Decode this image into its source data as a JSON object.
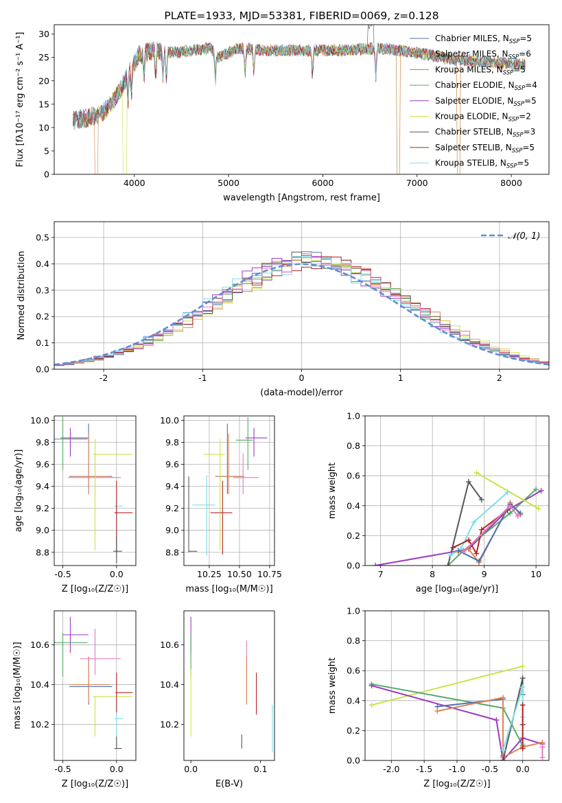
{
  "colors": {
    "chabrier_miles": "#4c72b0",
    "salpeter_miles": "#dd8452",
    "kroupa_miles": "#c17a2a",
    "chabrier_elodie": "#55a868",
    "salpeter_elodie": "#9a3bc2",
    "kroupa_elodie": "#cde14a",
    "chabrier_stelib": "#555555",
    "salpeter_stelib": "#b22222",
    "kroupa_stelib": "#7ddde8",
    "pink": "#e377c2",
    "gaussian": "#5b8fd6"
  },
  "chart_data": [
    {
      "id": "spectrum",
      "type": "line",
      "title": "PLATE=1933, MJD=53381, FIBERID=0069, z=0.128",
      "xlabel": "wavelength [Angstrom, rest frame]",
      "ylabel": "Flux [fλ10⁻¹⁷ erg cm⁻² s⁻¹ A⁻¹]",
      "xlim": [
        3150,
        8400
      ],
      "ylim": [
        0,
        32
      ],
      "xticks": [
        4000,
        5000,
        6000,
        7000,
        8000
      ],
      "yticks": [
        0,
        5,
        10,
        15,
        20,
        25,
        30
      ],
      "grid": false,
      "legend_position": "top-right",
      "continuum": {
        "x": [
          3350,
          3500,
          3650,
          3750,
          3850,
          3950,
          4050,
          4200,
          4400,
          4600,
          4800,
          4900,
          5100,
          5400,
          5800,
          6200,
          6600,
          7000,
          7400,
          7800,
          8150
        ],
        "y": [
          11.5,
          12,
          13,
          15,
          18,
          22,
          25.5,
          26.5,
          26,
          26.5,
          27,
          25,
          27,
          26.5,
          26.5,
          26.5,
          27,
          26,
          24.5,
          24,
          23.5
        ]
      },
      "series": [
        {
          "name": "Chabrier MILES, N_SSP=5",
          "color_key": "chabrier_miles"
        },
        {
          "name": "Salpeter MILES, N_SSP=6",
          "color_key": "salpeter_miles"
        },
        {
          "name": "Kroupa MILES, N_SSP=5",
          "color_key": "kroupa_miles"
        },
        {
          "name": "Chabrier ELODIE, N_SSP=4",
          "color_key": "chabrier_elodie"
        },
        {
          "name": "Salpeter ELODIE, N_SSP=5",
          "color_key": "salpeter_elodie"
        },
        {
          "name": "Kroupa ELODIE, N_SSP=2",
          "color_key": "kroupa_elodie"
        },
        {
          "name": "Chabrier STELIB, N_SSP=3",
          "color_key": "chabrier_stelib"
        },
        {
          "name": "Salpeter STELIB, N_SSP=5",
          "color_key": "salpeter_stelib"
        },
        {
          "name": "Kroupa STELIB, N_SSP=5",
          "color_key": "kroupa_stelib"
        }
      ],
      "legend": [
        {
          "pre": "Chabrier MILES, N",
          "sub": "SSP",
          "post": "=5",
          "color_key": "chabrier_miles"
        },
        {
          "pre": "Salpeter MILES, N",
          "sub": "SSP",
          "post": "=6",
          "color_key": "salpeter_miles"
        },
        {
          "pre": "Kroupa MILES, N",
          "sub": "SSP",
          "post": "=5",
          "color_key": "kroupa_miles"
        },
        {
          "pre": "Chabrier ELODIE, N",
          "sub": "SSP",
          "post": "=4",
          "color_key": "chabrier_elodie"
        },
        {
          "pre": "Salpeter ELODIE, N",
          "sub": "SSP",
          "post": "=5",
          "color_key": "salpeter_elodie"
        },
        {
          "pre": "Kroupa ELODIE, N",
          "sub": "SSP",
          "post": "=2",
          "color_key": "kroupa_elodie"
        },
        {
          "pre": "Chabrier STELIB, N",
          "sub": "SSP",
          "post": "=3",
          "color_key": "chabrier_stelib"
        },
        {
          "pre": "Salpeter STELIB, N",
          "sub": "SSP",
          "post": "=5",
          "color_key": "salpeter_stelib"
        },
        {
          "pre": "Kroupa STELIB, N",
          "sub": "SSP",
          "post": "=5",
          "color_key": "kroupa_stelib"
        }
      ]
    },
    {
      "id": "residual_hist",
      "type": "bar",
      "xlabel": "(data-model)/error",
      "ylabel": "Normed distribution",
      "xlim": [
        -2.5,
        2.5
      ],
      "ylim": [
        0,
        0.56
      ],
      "xticks": [
        -2,
        -1,
        0,
        1,
        2
      ],
      "yticks": [
        0.0,
        0.1,
        0.2,
        0.3,
        0.4,
        0.5
      ],
      "grid": true,
      "legend_position": "top-right",
      "legend": [
        {
          "label": "𝒩(0, 1)",
          "color_key": "gaussian",
          "style": "dashed"
        }
      ],
      "bin_width": 0.1,
      "series": [
        {
          "color_key": "chabrier_miles",
          "peak_mu": 0.1,
          "sigma": 1.0
        },
        {
          "color_key": "salpeter_miles",
          "peak_mu": 0.15,
          "sigma": 1.0
        },
        {
          "color_key": "chabrier_elodie",
          "peak_mu": 0.1,
          "sigma": 0.98
        },
        {
          "color_key": "salpeter_elodie",
          "peak_mu": 0.05,
          "sigma": 1.0
        },
        {
          "color_key": "kroupa_elodie",
          "peak_mu": 0.15,
          "sigma": 1.02
        },
        {
          "color_key": "chabrier_stelib",
          "peak_mu": 0.1,
          "sigma": 0.99
        },
        {
          "color_key": "salpeter_stelib",
          "peak_mu": 0.1,
          "sigma": 1.0
        },
        {
          "color_key": "kroupa_stelib",
          "peak_mu": 0.05,
          "sigma": 1.01
        },
        {
          "color_key": "pink",
          "peak_mu": 0.1,
          "sigma": 1.0
        }
      ]
    },
    {
      "id": "age_vs_z",
      "type": "scatter",
      "xlabel": "Z [log₁₀(Z/Z☉)]",
      "ylabel": "age  [log₁₀(age/yr)]",
      "xlim": [
        -0.58,
        0.18
      ],
      "ylim": [
        8.68,
        10.04
      ],
      "xticks": [
        -0.5,
        0.0
      ],
      "yticks": [
        8.8,
        9.0,
        9.2,
        9.4,
        9.6,
        9.8,
        10.0
      ],
      "grid": true,
      "points": [
        {
          "x": -0.5,
          "y": 9.83,
          "xl": -0.58,
          "xh": -0.27,
          "yl": 9.55,
          "yh": 10.03,
          "color_key": "chabrier_elodie"
        },
        {
          "x": -0.43,
          "y": 9.84,
          "xl": -0.52,
          "xh": -0.26,
          "yl": 9.67,
          "yh": 9.93,
          "color_key": "salpeter_elodie"
        },
        {
          "x": -0.26,
          "y": 9.49,
          "xl": -0.44,
          "xh": -0.04,
          "yl": 9.33,
          "yh": 9.97,
          "color_key": "chabrier_miles"
        },
        {
          "x": -0.26,
          "y": 9.49,
          "xl": -0.43,
          "xh": -0.06,
          "yl": 9.33,
          "yh": 9.88,
          "color_key": "salpeter_miles"
        },
        {
          "x": -0.2,
          "y": 9.48,
          "xl": -0.45,
          "xh": 0.04,
          "yl": 9.33,
          "yh": 9.7,
          "color_key": "pink"
        },
        {
          "x": -0.2,
          "y": 9.69,
          "xl": -0.22,
          "xh": 0.15,
          "yl": 8.82,
          "yh": 9.83,
          "color_key": "kroupa_elodie"
        },
        {
          "x": 0.0,
          "y": 9.22,
          "xl": -0.02,
          "xh": 0.06,
          "yl": 8.77,
          "yh": 9.28,
          "color_key": "kroupa_stelib"
        },
        {
          "x": 0.0,
          "y": 9.16,
          "xl": -0.02,
          "xh": 0.15,
          "yl": 8.8,
          "yh": 9.45,
          "color_key": "salpeter_stelib"
        },
        {
          "x": 0.0,
          "y": 8.81,
          "xl": -0.03,
          "xh": 0.05,
          "yl": 8.7,
          "yh": 8.95,
          "color_key": "chabrier_stelib"
        }
      ]
    },
    {
      "id": "age_vs_mass",
      "type": "scatter",
      "xlabel": "mass [log₁₀(M/M☉)]",
      "ylabel": "",
      "xlim": [
        10.04,
        10.79
      ],
      "ylim": [
        8.68,
        10.04
      ],
      "xticks": [
        10.25,
        10.5,
        10.75
      ],
      "yticks": [
        8.8,
        9.0,
        9.2,
        9.4,
        9.6,
        9.8,
        10.0
      ],
      "grid": true,
      "points": [
        {
          "x": 10.62,
          "y": 9.84,
          "xl": 10.55,
          "xh": 10.73,
          "yl": 9.67,
          "yh": 9.93,
          "color_key": "salpeter_elodie"
        },
        {
          "x": 10.57,
          "y": 9.82,
          "xl": 10.47,
          "xh": 10.61,
          "yl": 9.55,
          "yh": 10.03,
          "color_key": "chabrier_elodie"
        },
        {
          "x": 10.4,
          "y": 9.49,
          "xl": 10.3,
          "xh": 10.54,
          "yl": 9.33,
          "yh": 9.97,
          "color_key": "chabrier_miles"
        },
        {
          "x": 10.41,
          "y": 9.49,
          "xl": 10.3,
          "xh": 10.54,
          "yl": 9.33,
          "yh": 9.88,
          "color_key": "salpeter_miles"
        },
        {
          "x": 10.53,
          "y": 9.48,
          "xl": 10.45,
          "xh": 10.66,
          "yl": 9.33,
          "yh": 9.7,
          "color_key": "pink"
        },
        {
          "x": 10.34,
          "y": 9.69,
          "xl": 10.2,
          "xh": 10.38,
          "yl": 8.82,
          "yh": 9.83,
          "color_key": "kroupa_elodie"
        },
        {
          "x": 10.23,
          "y": 9.23,
          "xl": 10.11,
          "xh": 10.3,
          "yl": 8.77,
          "yh": 9.5,
          "color_key": "kroupa_stelib"
        },
        {
          "x": 10.36,
          "y": 9.16,
          "xl": 10.26,
          "xh": 10.44,
          "yl": 8.78,
          "yh": 9.45,
          "color_key": "salpeter_stelib"
        },
        {
          "x": 10.08,
          "y": 8.81,
          "xl": 10.08,
          "xh": 10.15,
          "yl": 8.8,
          "yh": 9.49,
          "color_key": "chabrier_stelib"
        }
      ]
    },
    {
      "id": "weight_vs_age",
      "type": "line",
      "xlabel": "age  [log₁₀(age/yr)]",
      "ylabel": "mass weight",
      "xlim": [
        6.7,
        10.25
      ],
      "ylim": [
        0.0,
        1.0
      ],
      "xticks": [
        7,
        8,
        9,
        10
      ],
      "yticks": [
        0.0,
        0.2,
        0.4,
        0.6,
        0.8,
        1.0
      ],
      "grid": true,
      "series": [
        {
          "color_key": "salpeter_elodie",
          "x": [
            6.9,
            8.7,
            9.45,
            10.1
          ],
          "y": [
            0.0,
            0.11,
            0.37,
            0.5
          ]
        },
        {
          "color_key": "chabrier_elodie",
          "x": [
            8.3,
            8.6,
            9.5,
            10.0
          ],
          "y": [
            0.0,
            0.1,
            0.35,
            0.51
          ]
        },
        {
          "color_key": "kroupa_elodie",
          "x": [
            8.85,
            10.05
          ],
          "y": [
            0.62,
            0.38
          ]
        },
        {
          "color_key": "chabrier_stelib",
          "x": [
            8.3,
            8.7,
            8.95
          ],
          "y": [
            0.0,
            0.56,
            0.44
          ]
        },
        {
          "color_key": "kroupa_stelib",
          "x": [
            8.35,
            8.55,
            8.8,
            9.45
          ],
          "y": [
            0.07,
            0.11,
            0.29,
            0.49
          ]
        },
        {
          "color_key": "salpeter_stelib",
          "x": [
            8.4,
            8.7,
            8.85,
            8.95,
            9.45
          ],
          "y": [
            0.12,
            0.17,
            0.08,
            0.24,
            0.37
          ]
        },
        {
          "color_key": "salpeter_miles",
          "x": [
            8.5,
            8.7,
            8.9,
            9.5,
            9.7
          ],
          "y": [
            0.09,
            0.11,
            0.02,
            0.42,
            0.34
          ]
        },
        {
          "color_key": "chabrier_miles",
          "x": [
            8.5,
            8.9,
            9.5,
            9.7
          ],
          "y": [
            0.1,
            0.03,
            0.41,
            0.35
          ]
        },
        {
          "color_key": "pink",
          "x": [
            8.6,
            9.5,
            9.65
          ],
          "y": [
            0.09,
            0.4,
            0.33
          ]
        }
      ]
    },
    {
      "id": "mass_vs_z",
      "type": "scatter",
      "xlabel": "Z [log₁₀(Z/Z☉)]",
      "ylabel": "mass [log₁₀(M/M☉)]",
      "xlim": [
        -0.58,
        0.18
      ],
      "ylim": [
        10.02,
        10.77
      ],
      "xticks": [
        -0.5,
        0.0
      ],
      "yticks": [
        10.2,
        10.4,
        10.6
      ],
      "grid": true,
      "points": [
        {
          "x": -0.43,
          "y": 10.65,
          "xl": -0.5,
          "xh": -0.26,
          "yl": 10.56,
          "yh": 10.74,
          "color_key": "salpeter_elodie"
        },
        {
          "x": -0.5,
          "y": 10.61,
          "xl": -0.58,
          "xh": -0.27,
          "yl": 10.44,
          "yh": 10.66,
          "color_key": "chabrier_elodie"
        },
        {
          "x": -0.26,
          "y": 10.39,
          "xl": -0.44,
          "xh": -0.04,
          "yl": 10.3,
          "yh": 10.54,
          "color_key": "chabrier_miles"
        },
        {
          "x": -0.26,
          "y": 10.4,
          "xl": -0.43,
          "xh": -0.06,
          "yl": 10.31,
          "yh": 10.54,
          "color_key": "salpeter_miles"
        },
        {
          "x": -0.2,
          "y": 10.53,
          "xl": -0.34,
          "xh": 0.04,
          "yl": 10.45,
          "yh": 10.68,
          "color_key": "pink"
        },
        {
          "x": -0.2,
          "y": 10.34,
          "xl": -0.22,
          "xh": 0.15,
          "yl": 10.14,
          "yh": 10.34,
          "color_key": "kroupa_elodie"
        },
        {
          "x": 0.0,
          "y": 10.23,
          "xl": -0.02,
          "xh": 0.06,
          "yl": 10.1,
          "yh": 10.3,
          "color_key": "kroupa_stelib"
        },
        {
          "x": 0.0,
          "y": 10.36,
          "xl": -0.01,
          "xh": 0.15,
          "yl": 10.26,
          "yh": 10.46,
          "color_key": "salpeter_stelib"
        },
        {
          "x": 0.0,
          "y": 10.08,
          "xl": -0.02,
          "xh": 0.05,
          "yl": 10.08,
          "yh": 10.14,
          "color_key": "chabrier_stelib"
        }
      ]
    },
    {
      "id": "mass_vs_ebv",
      "type": "scatter",
      "xlabel": "E(B-V)",
      "ylabel": "",
      "xlim": [
        -0.01,
        0.12
      ],
      "ylim": [
        10.02,
        10.77
      ],
      "xticks": [
        0.0,
        0.1
      ],
      "yticks": [
        10.2,
        10.4,
        10.6
      ],
      "grid": false,
      "points": [
        {
          "x": 0.0,
          "y": 10.65,
          "yl": 10.56,
          "yh": 10.74,
          "color_key": "salpeter_elodie"
        },
        {
          "x": 0.0,
          "y": 10.61,
          "yl": 10.44,
          "yh": 10.66,
          "color_key": "chabrier_elodie"
        },
        {
          "x": 0.0,
          "y": 10.34,
          "yl": 10.14,
          "yh": 10.48,
          "color_key": "kroupa_elodie"
        },
        {
          "x": 0.08,
          "y": 10.53,
          "yl": 10.3,
          "yh": 10.62,
          "color_key": "pink"
        },
        {
          "x": 0.08,
          "y": 10.4,
          "yl": 10.3,
          "yh": 10.54,
          "color_key": "salpeter_miles"
        },
        {
          "x": 0.094,
          "y": 10.36,
          "yl": 10.25,
          "yh": 10.46,
          "color_key": "salpeter_stelib"
        },
        {
          "x": 0.073,
          "y": 10.11,
          "yl": 10.08,
          "yh": 10.15,
          "color_key": "chabrier_stelib"
        },
        {
          "x": 0.117,
          "y": 10.2,
          "yl": 10.06,
          "yh": 10.3,
          "color_key": "kroupa_stelib"
        }
      ]
    },
    {
      "id": "weight_vs_z",
      "type": "line",
      "xlabel": "Z [log₁₀(Z/Z☉)]",
      "ylabel": "mass weight",
      "xlim": [
        -2.4,
        0.4
      ],
      "ylim": [
        0.0,
        1.0
      ],
      "xticks": [
        -2.0,
        -1.5,
        -1.0,
        -0.5,
        0.0
      ],
      "yticks": [
        0.0,
        0.2,
        0.4,
        0.6,
        0.8,
        1.0
      ],
      "grid": true,
      "series": [
        {
          "color_key": "kroupa_elodie",
          "x": [
            -2.3,
            0.0
          ],
          "y": [
            0.37,
            0.63
          ]
        },
        {
          "color_key": "chabrier_elodie",
          "x": [
            -2.3,
            -0.3,
            0.0
          ],
          "y": [
            0.51,
            0.35,
            0.1
          ]
        },
        {
          "color_key": "salpeter_elodie",
          "x": [
            -2.3,
            -0.4,
            -0.3,
            0.0,
            0.3
          ],
          "y": [
            0.5,
            0.27,
            0.0,
            0.15,
            0.11
          ]
        },
        {
          "color_key": "chabrier_miles",
          "x": [
            -1.3,
            -0.3,
            -0.3
          ],
          "y": [
            0.36,
            0.41,
            0.03
          ]
        },
        {
          "color_key": "salpeter_miles",
          "x": [
            -1.3,
            -0.3,
            -0.3,
            0.0,
            0.3
          ],
          "y": [
            0.33,
            0.42,
            0.02,
            0.09,
            0.12
          ]
        },
        {
          "color_key": "chabrier_stelib",
          "x": [
            -0.3,
            0.0,
            0.0
          ],
          "y": [
            0.0,
            0.55,
            0.44
          ]
        },
        {
          "color_key": "kroupa_stelib",
          "x": [
            -0.3,
            0.0,
            0.0,
            0.0
          ],
          "y": [
            0.07,
            0.49,
            0.29,
            0.11
          ]
        },
        {
          "color_key": "salpeter_stelib",
          "x": [
            0.0,
            0.0,
            0.0
          ],
          "y": [
            0.37,
            0.24,
            0.08
          ]
        },
        {
          "color_key": "pink",
          "x": [
            0.3,
            0.3
          ],
          "y": [
            0.09,
            0.02
          ]
        }
      ]
    }
  ]
}
